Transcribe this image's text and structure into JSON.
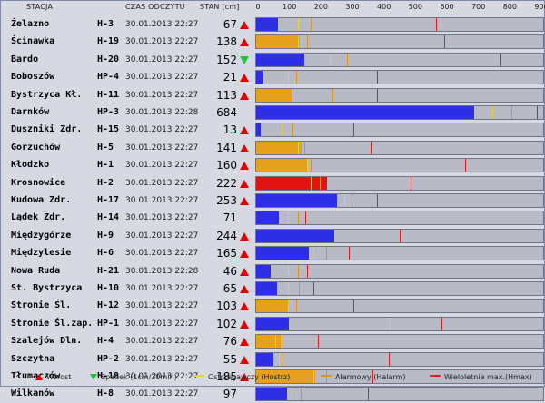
{
  "header": {
    "station_label": "STACJA",
    "time_label": "CZAS ODCZYTU",
    "level_label": "STAN [cm]",
    "scale_ticks": [
      "0",
      "100",
      "200",
      "300",
      "400",
      "500",
      "600",
      "700",
      "800",
      "900"
    ],
    "scale_max": 900
  },
  "colors": {
    "below_warning": "#2e2ee6",
    "warning_zone": "#e5a11b",
    "alarm_zone": "#e41313",
    "warning_line": "#e6d33a",
    "alarm_line": "#d8941c",
    "max_line": "#e41b1b",
    "trend_up": "#e00000",
    "trend_down": "#22c33a"
  },
  "stations": [
    {
      "name": "Żelazno",
      "code": "H-3",
      "time": "30.01.2013 22:27",
      "level": 67,
      "trend": "up",
      "state": "normal",
      "warning": 130,
      "alarm": 170,
      "max": 565
    },
    {
      "name": "Ścinawka",
      "code": "H-19",
      "time": "30.01.2013 22:27",
      "level": 138,
      "trend": "up",
      "state": "warning",
      "warning": 130,
      "alarm": 160,
      "max": 590
    },
    {
      "name": "Bardo",
      "code": "H-20",
      "time": "30.01.2013 22:27",
      "level": 152,
      "trend": "down",
      "state": "normal",
      "warning": 230,
      "alarm": 285,
      "max": 765
    },
    {
      "name": "Boboszów",
      "code": "HP-4",
      "time": "30.01.2013 22:27",
      "level": 21,
      "trend": "up",
      "state": "normal",
      "warning": 100,
      "alarm": 125,
      "max": 380
    },
    {
      "name": "Bystrzyca Kł.",
      "code": "H-11",
      "time": "30.01.2013 22:27",
      "level": 113,
      "trend": "up",
      "state": "warning",
      "warning": 110,
      "alarm": 240,
      "max": 380
    },
    {
      "name": "Darnków",
      "code": "HP-3",
      "time": "30.01.2013 22:28",
      "level": 684,
      "trend": "",
      "state": "normal",
      "warning": 740,
      "alarm": 800,
      "max": 880
    },
    {
      "name": "Duszniki Zdr.",
      "code": "H-15",
      "time": "30.01.2013 22:27",
      "level": 13,
      "trend": "up",
      "state": "normal",
      "warning": 80,
      "alarm": 115,
      "max": 305
    },
    {
      "name": "Gorzuchów",
      "code": "H-5",
      "time": "30.01.2013 22:27",
      "level": 141,
      "trend": "up",
      "state": "warning",
      "warning": 130,
      "alarm": 150,
      "max": 360
    },
    {
      "name": "Kłodzko",
      "code": "H-1",
      "time": "30.01.2013 22:27",
      "level": 160,
      "trend": "up",
      "state": "warning",
      "warning": 160,
      "alarm": 170,
      "max": 655
    },
    {
      "name": "Krosnowice",
      "code": "H-2",
      "time": "30.01.2013 22:27",
      "level": 222,
      "trend": "up",
      "state": "alarm",
      "warning": 170,
      "alarm": 200,
      "max": 485
    },
    {
      "name": "Kudowa Zdr.",
      "code": "H-17",
      "time": "30.01.2013 22:27",
      "level": 253,
      "trend": "up",
      "state": "normal",
      "warning": 275,
      "alarm": 300,
      "max": 380
    },
    {
      "name": "Lądek Zdr.",
      "code": "H-14",
      "time": "30.01.2013 22:27",
      "level": 71,
      "trend": "",
      "state": "normal",
      "warning": 100,
      "alarm": 130,
      "max": 155
    },
    {
      "name": "Międzygórze",
      "code": "H-9",
      "time": "30.01.2013 22:27",
      "level": 244,
      "trend": "up",
      "state": "normal",
      "warning": 450,
      "alarm": 450,
      "max": 450
    },
    {
      "name": "Międzylesie",
      "code": "H-6",
      "time": "30.01.2013 22:27",
      "level": 165,
      "trend": "up",
      "state": "normal",
      "warning": 180,
      "alarm": 220,
      "max": 290
    },
    {
      "name": "Nowa Ruda",
      "code": "H-21",
      "time": "30.01.2013 22:28",
      "level": 46,
      "trend": "up",
      "state": "normal",
      "warning": 100,
      "alarm": 130,
      "max": 160
    },
    {
      "name": "St. Bystrzyca",
      "code": "H-10",
      "time": "30.01.2013 22:27",
      "level": 65,
      "trend": "up",
      "state": "normal",
      "warning": 100,
      "alarm": 135,
      "max": 180
    },
    {
      "name": "Stronie Śl.",
      "code": "H-12",
      "time": "30.01.2013 22:27",
      "level": 103,
      "trend": "up",
      "state": "warning",
      "warning": 100,
      "alarm": 125,
      "max": 305
    },
    {
      "name": "Stronie Śl.zap.",
      "code": "HP-1",
      "time": "30.01.2013 22:27",
      "level": 102,
      "trend": "up",
      "state": "normal",
      "warning": 420,
      "alarm": 580,
      "max": 580
    },
    {
      "name": "Szalejów Dln.",
      "code": "H-4",
      "time": "30.01.2013 22:27",
      "level": 76,
      "trend": "up",
      "state": "warning",
      "warning": 60,
      "alarm": 80,
      "max": 195
    },
    {
      "name": "Szczytna",
      "code": "HP-2",
      "time": "30.01.2013 22:27",
      "level": 55,
      "trend": "up",
      "state": "normal",
      "warning": 70,
      "alarm": 80,
      "max": 415
    },
    {
      "name": "Tłumaczów",
      "code": "H-18",
      "time": "30.01.2013 22:27",
      "level": 185,
      "trend": "up",
      "state": "warning",
      "warning": 180,
      "alarm": 220,
      "max": 365
    },
    {
      "name": "Wilkanów",
      "code": "H-8",
      "time": "30.01.2013 22:27",
      "level": 97,
      "trend": "",
      "state": "normal",
      "warning": 110,
      "alarm": 140,
      "max": 350
    }
  ],
  "legend": {
    "rise": "Wzrost",
    "fall": "Spadek (1cm/30min)",
    "warning": "Ostrzegawczy (Hostrz)",
    "alarm": "Alarmowy (Halarm)",
    "max": "Wieloletnie max.(Hmax)"
  }
}
